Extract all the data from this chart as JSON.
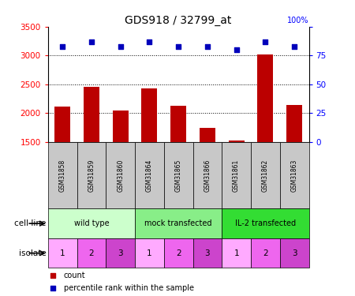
{
  "title": "GDS918 / 32799_at",
  "samples": [
    "GSM31858",
    "GSM31859",
    "GSM31860",
    "GSM31864",
    "GSM31865",
    "GSM31866",
    "GSM31861",
    "GSM31862",
    "GSM31863"
  ],
  "counts": [
    2110,
    2460,
    2050,
    2430,
    2130,
    1740,
    1530,
    3020,
    2140
  ],
  "percentile_ranks": [
    83,
    87,
    83,
    87,
    83,
    83,
    80,
    87,
    83
  ],
  "ylim_left": [
    1500,
    3500
  ],
  "ylim_right": [
    0,
    100
  ],
  "yticks_left": [
    1500,
    2000,
    2500,
    3000,
    3500
  ],
  "yticks_right": [
    0,
    25,
    50,
    75,
    100
  ],
  "bar_color": "#bb0000",
  "dot_color": "#0000bb",
  "cell_lines": [
    {
      "label": "wild type",
      "start": 0,
      "end": 3,
      "color": "#ccffcc"
    },
    {
      "label": "mock transfected",
      "start": 3,
      "end": 6,
      "color": "#88ee88"
    },
    {
      "label": "IL-2 transfected",
      "start": 6,
      "end": 9,
      "color": "#33dd33"
    }
  ],
  "isolates": [
    1,
    2,
    3,
    1,
    2,
    3,
    1,
    2,
    3
  ],
  "isolate_colors": [
    "#ffaaff",
    "#ee66ee",
    "#cc44cc",
    "#ffaaff",
    "#ee66ee",
    "#cc44cc",
    "#ffaaff",
    "#ee66ee",
    "#cc44cc"
  ],
  "label_cell_line": "cell line",
  "label_isolate": "isolate",
  "legend_count": "count",
  "legend_percentile": "percentile rank within the sample",
  "header_bg": "#c8c8c8",
  "grid_yticks": [
    2000,
    2500,
    3000
  ]
}
